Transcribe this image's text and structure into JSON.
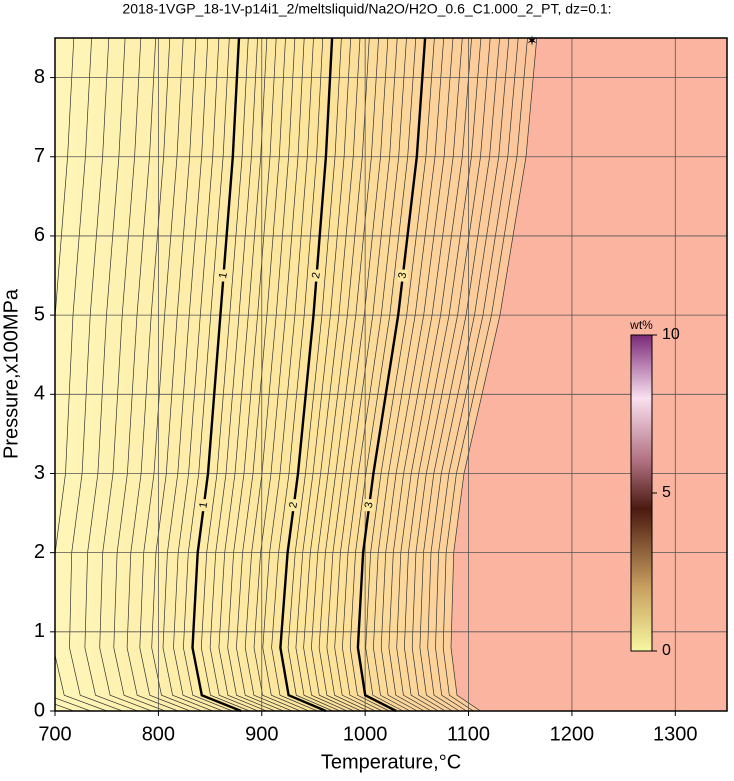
{
  "chart_data": {
    "type": "contour",
    "title": "2018-1VGP_18-1V-p14i1_2/meltsliquid/Na2O/H2O_0.6_C1.000_2_PT, dz=0.1:",
    "x_label": "Temperature,°C",
    "y_label": "Pressure,x100MPa",
    "xlim": [
      700,
      1350
    ],
    "ylim": [
      0,
      8.5
    ],
    "xticks": [
      700,
      800,
      900,
      1000,
      1100,
      1200,
      1300
    ],
    "yticks": [
      0,
      1,
      2,
      3,
      4,
      5,
      6,
      7,
      8
    ],
    "grid": true,
    "contours": [
      {
        "level": 1,
        "x": [
          880,
          842,
          833,
          838,
          848,
          860,
          872,
          878
        ],
        "y": [
          0,
          0.2,
          0.8,
          2,
          3,
          5,
          7,
          8.5
        ]
      },
      {
        "level": 2,
        "x": [
          962,
          926,
          918,
          925,
          935,
          950,
          962,
          968
        ],
        "y": [
          0,
          0.2,
          0.8,
          2,
          3,
          5,
          7,
          8.5
        ]
      },
      {
        "level": 3,
        "x": [
          1030,
          1000,
          993,
          998,
          1008,
          1032,
          1050,
          1058
        ],
        "y": [
          0,
          0.2,
          0.8,
          2,
          3,
          5,
          7,
          8.5
        ]
      }
    ],
    "colorbar": {
      "label": "wt%",
      "lim": [
        0,
        10
      ],
      "ticks": [
        0,
        5,
        10
      ]
    }
  }
}
